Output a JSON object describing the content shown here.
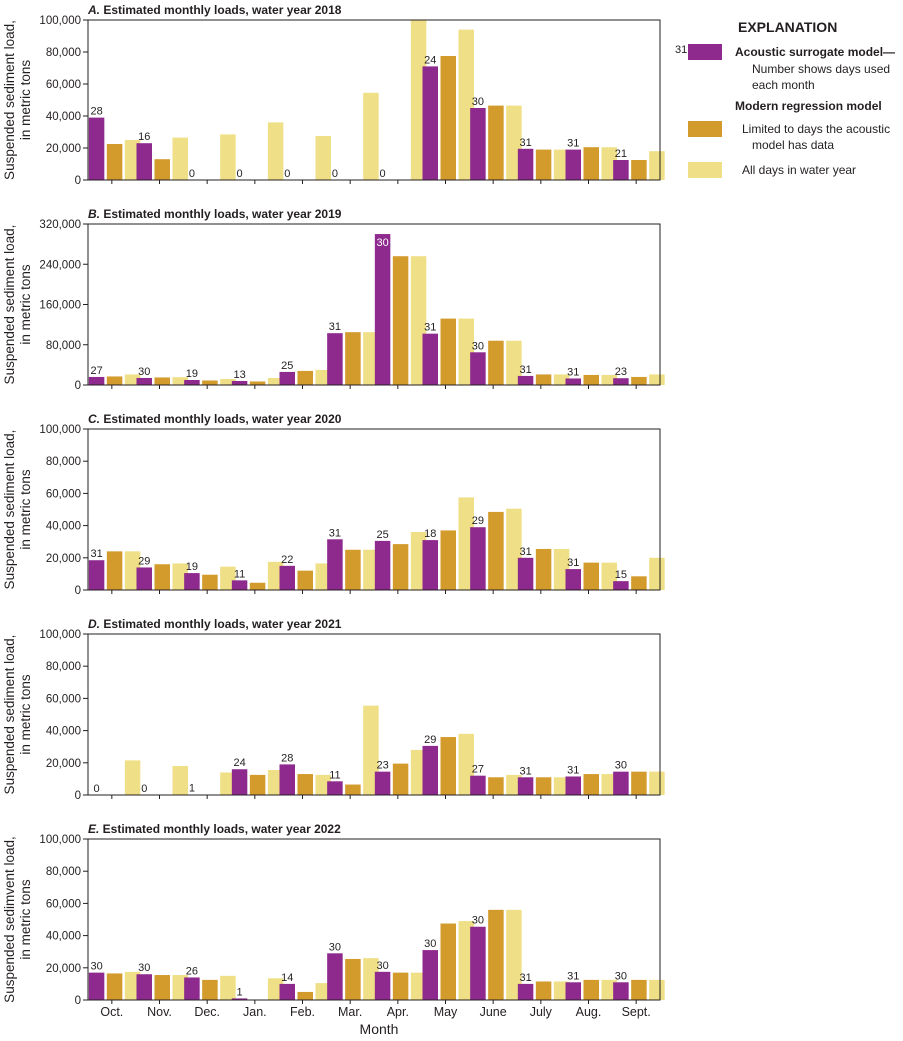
{
  "chart_data": {
    "type": "bar",
    "categories": [
      "Oct.",
      "Nov.",
      "Dec.",
      "Jan.",
      "Feb.",
      "Mar.",
      "Apr.",
      "May",
      "June",
      "July",
      "Aug.",
      "Sept."
    ],
    "xlabel": "Month",
    "series_names": [
      "Acoustic surrogate model",
      "Modern regression model limited to days the acoustic model has data",
      "Modern regression model, all days in water year"
    ],
    "colors": {
      "acoustic": "#8e2a8e",
      "limited": "#d39a2c",
      "all": "#efdf86"
    },
    "legend": {
      "title": "EXPLANATION",
      "example_days": "31",
      "acoustic_label": "Acoustic surrogate model—",
      "acoustic_desc1": "Number shows days used",
      "acoustic_desc2": "each month",
      "modern_label": "Modern regression model",
      "limited_desc1": "Limited to days the acoustic",
      "limited_desc2": "model has data",
      "all_desc": "All days in water year",
      "placement": "top-right"
    },
    "panels": [
      {
        "letter": "A.",
        "title": "Estimated monthly loads, water year 2018",
        "ylabel1": "Suspended sediment load,",
        "ylabel2": "in metric tons",
        "ylim": [
          0,
          100000
        ],
        "yticks": [
          0,
          20000,
          40000,
          60000,
          80000,
          100000
        ],
        "ytick_labels": [
          "0",
          "20,000",
          "40,000",
          "60,000",
          "80,000",
          "100,000"
        ],
        "acoustic": [
          39000,
          23000,
          0,
          0,
          0,
          0,
          0,
          71000,
          45000,
          19500,
          19000,
          12500
        ],
        "limited": [
          22500,
          13000,
          0,
          0,
          0,
          0,
          0,
          77500,
          46500,
          19000,
          20500,
          12500
        ],
        "all": [
          25000,
          26500,
          28500,
          36000,
          27500,
          54500,
          100000,
          94000,
          46500,
          19000,
          20500,
          18000
        ],
        "days": [
          "28",
          "16",
          "0",
          "0",
          "0",
          "0",
          "0",
          "24",
          "30",
          "31",
          "31",
          "21"
        ]
      },
      {
        "letter": "B.",
        "title": "Estimated monthly loads, water year 2019",
        "ylabel1": "Suspended sediment load,",
        "ylabel2": "in metric tons",
        "ylim": [
          0,
          320000
        ],
        "yticks": [
          0,
          80000,
          160000,
          240000,
          320000
        ],
        "ytick_labels": [
          "0",
          "80,000",
          "160,000",
          "240,000",
          "320,000"
        ],
        "acoustic": [
          16000,
          14000,
          10000,
          8000,
          26000,
          103000,
          300000,
          102000,
          65000,
          18000,
          13000,
          13500
        ],
        "limited": [
          17000,
          15000,
          9000,
          7000,
          28000,
          105000,
          256000,
          132000,
          88000,
          21000,
          20000,
          16000
        ],
        "all": [
          21000,
          15500,
          12000,
          14000,
          30000,
          105000,
          256000,
          132000,
          88000,
          21000,
          20000,
          21000
        ],
        "days": [
          "27",
          "30",
          "19",
          "13",
          "25",
          "31",
          "30",
          "31",
          "30",
          "31",
          "31",
          "23"
        ]
      },
      {
        "letter": "C.",
        "title": "Estimated monthly loads, water year 2020",
        "ylabel1": "Suspended sediment load,",
        "ylabel2": "in metric tons",
        "ylim": [
          0,
          100000
        ],
        "yticks": [
          0,
          20000,
          40000,
          60000,
          80000,
          100000
        ],
        "ytick_labels": [
          "0",
          "20,000",
          "40,000",
          "60,000",
          "80,000",
          "100,000"
        ],
        "acoustic": [
          18500,
          14000,
          10500,
          6000,
          15000,
          31500,
          30500,
          31000,
          39000,
          20000,
          13000,
          5500
        ],
        "limited": [
          24000,
          16000,
          9500,
          4500,
          12000,
          25000,
          28500,
          37000,
          48500,
          25500,
          17000,
          8500
        ],
        "all": [
          24000,
          16500,
          14500,
          17500,
          16500,
          25000,
          36000,
          57500,
          50500,
          25500,
          17000,
          20000
        ],
        "days": [
          "31",
          "29",
          "19",
          "11",
          "22",
          "31",
          "25",
          "18",
          "29",
          "31",
          "31",
          "15"
        ]
      },
      {
        "letter": "D.",
        "title": "Estimated monthly loads, water year 2021",
        "ylabel1": "Suspended sediment load,",
        "ylabel2": "in metric tons",
        "ylim": [
          0,
          100000
        ],
        "yticks": [
          0,
          20000,
          40000,
          60000,
          80000,
          100000
        ],
        "ytick_labels": [
          "0",
          "20,000",
          "40,000",
          "60,000",
          "80,000",
          "100,000"
        ],
        "acoustic": [
          0,
          0,
          300,
          16000,
          19000,
          8500,
          14500,
          30500,
          12000,
          11000,
          11500,
          14500
        ],
        "limited": [
          0,
          0,
          200,
          12500,
          13000,
          6500,
          19500,
          36000,
          11000,
          11000,
          13000,
          14500
        ],
        "all": [
          21500,
          18000,
          14000,
          15500,
          12500,
          55500,
          28000,
          38000,
          12500,
          11000,
          13000,
          14500
        ],
        "days": [
          "0",
          "0",
          "1",
          "24",
          "28",
          "11",
          "23",
          "29",
          "27",
          "31",
          "31",
          "30"
        ]
      },
      {
        "letter": "E.",
        "title": "Estimated monthly loads, water year 2022",
        "ylabel1": "Suspended sedimvent load,",
        "ylabel2": "in metric tons",
        "ylim": [
          0,
          100000
        ],
        "yticks": [
          0,
          20000,
          40000,
          60000,
          80000,
          100000
        ],
        "ytick_labels": [
          "0",
          "20,000",
          "40,000",
          "60,000",
          "80,000",
          "100,000"
        ],
        "acoustic": [
          17000,
          16000,
          14000,
          1000,
          10000,
          29000,
          17500,
          31000,
          45500,
          10000,
          11000,
          11000
        ],
        "limited": [
          16500,
          15500,
          12500,
          300,
          5000,
          25500,
          17000,
          47500,
          56000,
          11500,
          12500,
          12500
        ],
        "all": [
          17500,
          15500,
          15000,
          13500,
          10500,
          26000,
          17000,
          49000,
          56000,
          11500,
          12500,
          12500
        ],
        "days": [
          "30",
          "30",
          "26",
          "1",
          "14",
          "30",
          "30",
          "30",
          "30",
          "31",
          "31",
          "30"
        ]
      }
    ]
  }
}
